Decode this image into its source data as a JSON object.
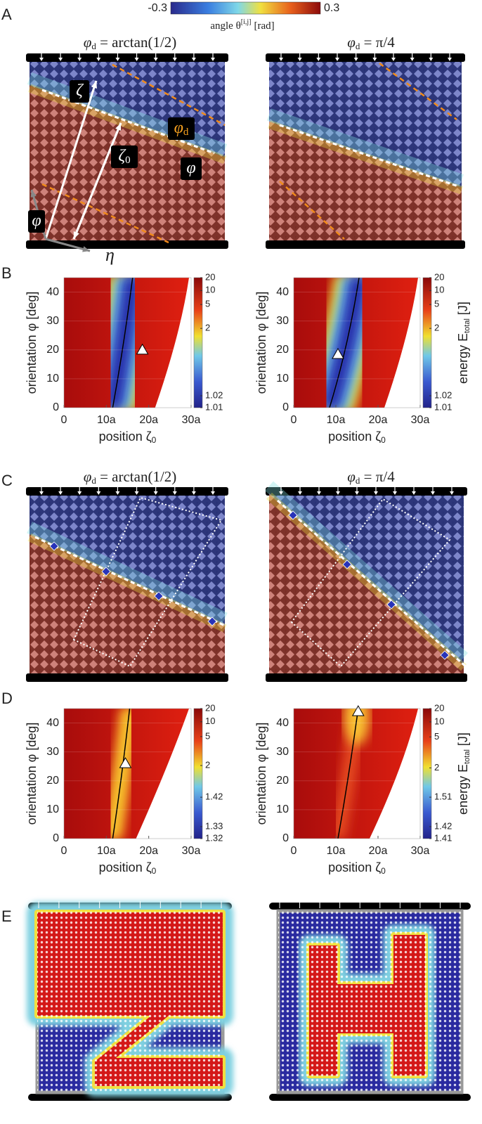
{
  "figure": {
    "panel_labels": [
      "A",
      "B",
      "C",
      "D",
      "E"
    ],
    "angle_colorbar": {
      "clim": [
        -0.3,
        0.3
      ],
      "label": "angle θ",
      "label_sup": "[i,j]",
      "label_unit": "[rad]"
    },
    "titles": [
      {
        "symbol": "φ",
        "sub": "d",
        "rest": " = arctan(1/2)"
      },
      {
        "symbol": "φ",
        "sub": "d",
        "rest": " = π/4"
      }
    ],
    "annotations": {
      "zeta": "ζ",
      "zeta0": "ζ",
      "zeta0_sub": "0",
      "phi_d": "φ",
      "phi_d_sub": "d",
      "phi": "φ",
      "eta": "η"
    },
    "energy_label": {
      "text": "energy E",
      "sub": "total",
      "unit": "[J]"
    },
    "plots": [
      {
        "xlim": [
          0,
          30
        ],
        "ylim": [
          0,
          45
        ],
        "xticks": [
          0,
          {
            "value": 10,
            "label": "10a"
          },
          {
            "value": 20,
            "label": "20a"
          },
          {
            "value": 30,
            "label": "30a"
          }
        ],
        "yticks": [
          0,
          10,
          20,
          30,
          40
        ],
        "xlabel": "position ζ",
        "xlabel_sub": "0",
        "ylabel": "orientation φ  [deg]",
        "clim": [
          1.01,
          20
        ],
        "cticks": [
          1.01,
          1.02,
          2,
          5,
          10,
          20
        ]
      },
      {
        "xlim": [
          0,
          30
        ],
        "ylim": [
          0,
          45
        ],
        "xticks": [
          0,
          {
            "value": 10,
            "label": "10a"
          },
          {
            "value": 20,
            "label": "20a"
          },
          {
            "value": 30,
            "label": "30a"
          }
        ],
        "yticks": [
          0,
          10,
          20,
          30,
          40
        ],
        "xlabel": "position ζ",
        "xlabel_sub": "0",
        "ylabel": "orientation φ  [deg]",
        "clim": [
          1.01,
          20
        ],
        "cticks": [
          1.01,
          1.02,
          2,
          5,
          10,
          20
        ]
      },
      {
        "xlim": [
          0,
          30
        ],
        "ylim": [
          0,
          45
        ],
        "xticks": [
          0,
          {
            "value": 10,
            "label": "10a"
          },
          {
            "value": 20,
            "label": "20a"
          },
          {
            "value": 30,
            "label": "30a"
          }
        ],
        "yticks": [
          0,
          10,
          20,
          30,
          40
        ],
        "xlabel": "position ζ",
        "xlabel_sub": "0",
        "ylabel": "orientation φ  [deg]",
        "clim": [
          1.32,
          20
        ],
        "cticks": [
          1.32,
          1.33,
          1.42,
          2,
          5,
          10,
          20
        ]
      },
      {
        "xlim": [
          0,
          30
        ],
        "ylim": [
          0,
          45
        ],
        "xticks": [
          0,
          {
            "value": 10,
            "label": "10a"
          },
          {
            "value": 20,
            "label": "20a"
          },
          {
            "value": 30,
            "label": "30a"
          }
        ],
        "yticks": [
          0,
          10,
          20,
          30,
          40
        ],
        "xlabel": "position ζ",
        "xlabel_sub": "0",
        "ylabel": "orientation φ  [deg]",
        "clim": [
          1.41,
          20
        ],
        "cticks": [
          1.41,
          1.42,
          1.51,
          2,
          5,
          10,
          20
        ]
      }
    ]
  }
}
